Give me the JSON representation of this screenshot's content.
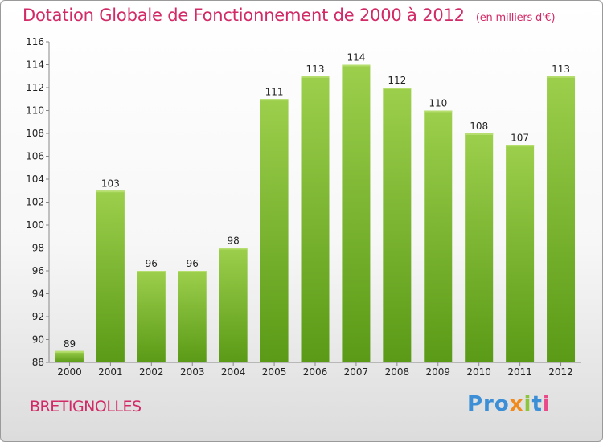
{
  "title": "Dotation Globale de Fonctionnement de 2000 à 2012",
  "unit": "(en milliers d'€)",
  "city": "BRETIGNOLLES",
  "logo": {
    "p1": "Pro",
    "p2": "x",
    "p3": "i",
    "p4": "t",
    "p5": "i"
  },
  "colors": {
    "accent": "#d22a67",
    "bar_light": "#9ccf4c",
    "bar_dark": "#5a9a16"
  },
  "chart_data": {
    "type": "bar",
    "categories": [
      "2000",
      "2001",
      "2002",
      "2003",
      "2004",
      "2005",
      "2006",
      "2007",
      "2008",
      "2009",
      "2010",
      "2011",
      "2012"
    ],
    "values": [
      89,
      103,
      96,
      96,
      98,
      111,
      113,
      114,
      112,
      110,
      108,
      107,
      113
    ],
    "ylim": [
      88,
      116
    ],
    "yticks": [
      88,
      90,
      92,
      94,
      96,
      98,
      100,
      102,
      104,
      106,
      108,
      110,
      112,
      114,
      116
    ],
    "grid": false,
    "legend": "none"
  }
}
